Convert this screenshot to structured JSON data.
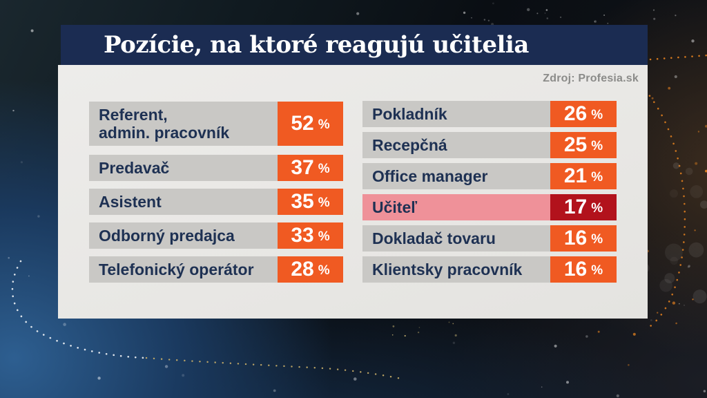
{
  "title": "Pozície, na ktoré reagujú učitelia",
  "source": "Zdroj: Profesia.sk",
  "chart_data": {
    "type": "bar",
    "title": "Pozície, na ktoré reagujú učitelia",
    "source": "Zdroj: Profesia.sk",
    "unit": "%",
    "value_range": [
      0,
      100
    ],
    "orientation": "list-badges",
    "highlight_category": "Učiteľ",
    "bar_color": "#f05a22",
    "highlight_color": "#b2121c",
    "highlight_label_bg": "#ef9199",
    "columns": [
      {
        "items": [
          {
            "label": "Referent,\nadmin. pracovník",
            "value": 52
          },
          {
            "label": "Predavač",
            "value": 37
          },
          {
            "label": "Asistent",
            "value": 35
          },
          {
            "label": "Odborný predajca",
            "value": 33
          },
          {
            "label": "Telefonický operátor",
            "value": 28
          }
        ]
      },
      {
        "items": [
          {
            "label": "Pokladník",
            "value": 26
          },
          {
            "label": "Recepčná",
            "value": 25
          },
          {
            "label": "Office manager",
            "value": 21
          },
          {
            "label": "Učiteľ",
            "value": 17,
            "highlighted": true
          },
          {
            "label": "Dokladač tovaru",
            "value": 16
          },
          {
            "label": "Klientsky pracovník",
            "value": 16
          }
        ]
      }
    ]
  },
  "colors": {
    "title_bar": "#1b2c52",
    "panel_bg": "#e9e8e5",
    "row_label_bg": "#c9c8c5",
    "label_text": "#1e3153",
    "value_bg": "#f05a22",
    "value_text": "#ffffff",
    "highlight_label_bg": "#ef9199",
    "highlight_value_bg": "#b2121c",
    "source_text": "#8b8b89"
  }
}
